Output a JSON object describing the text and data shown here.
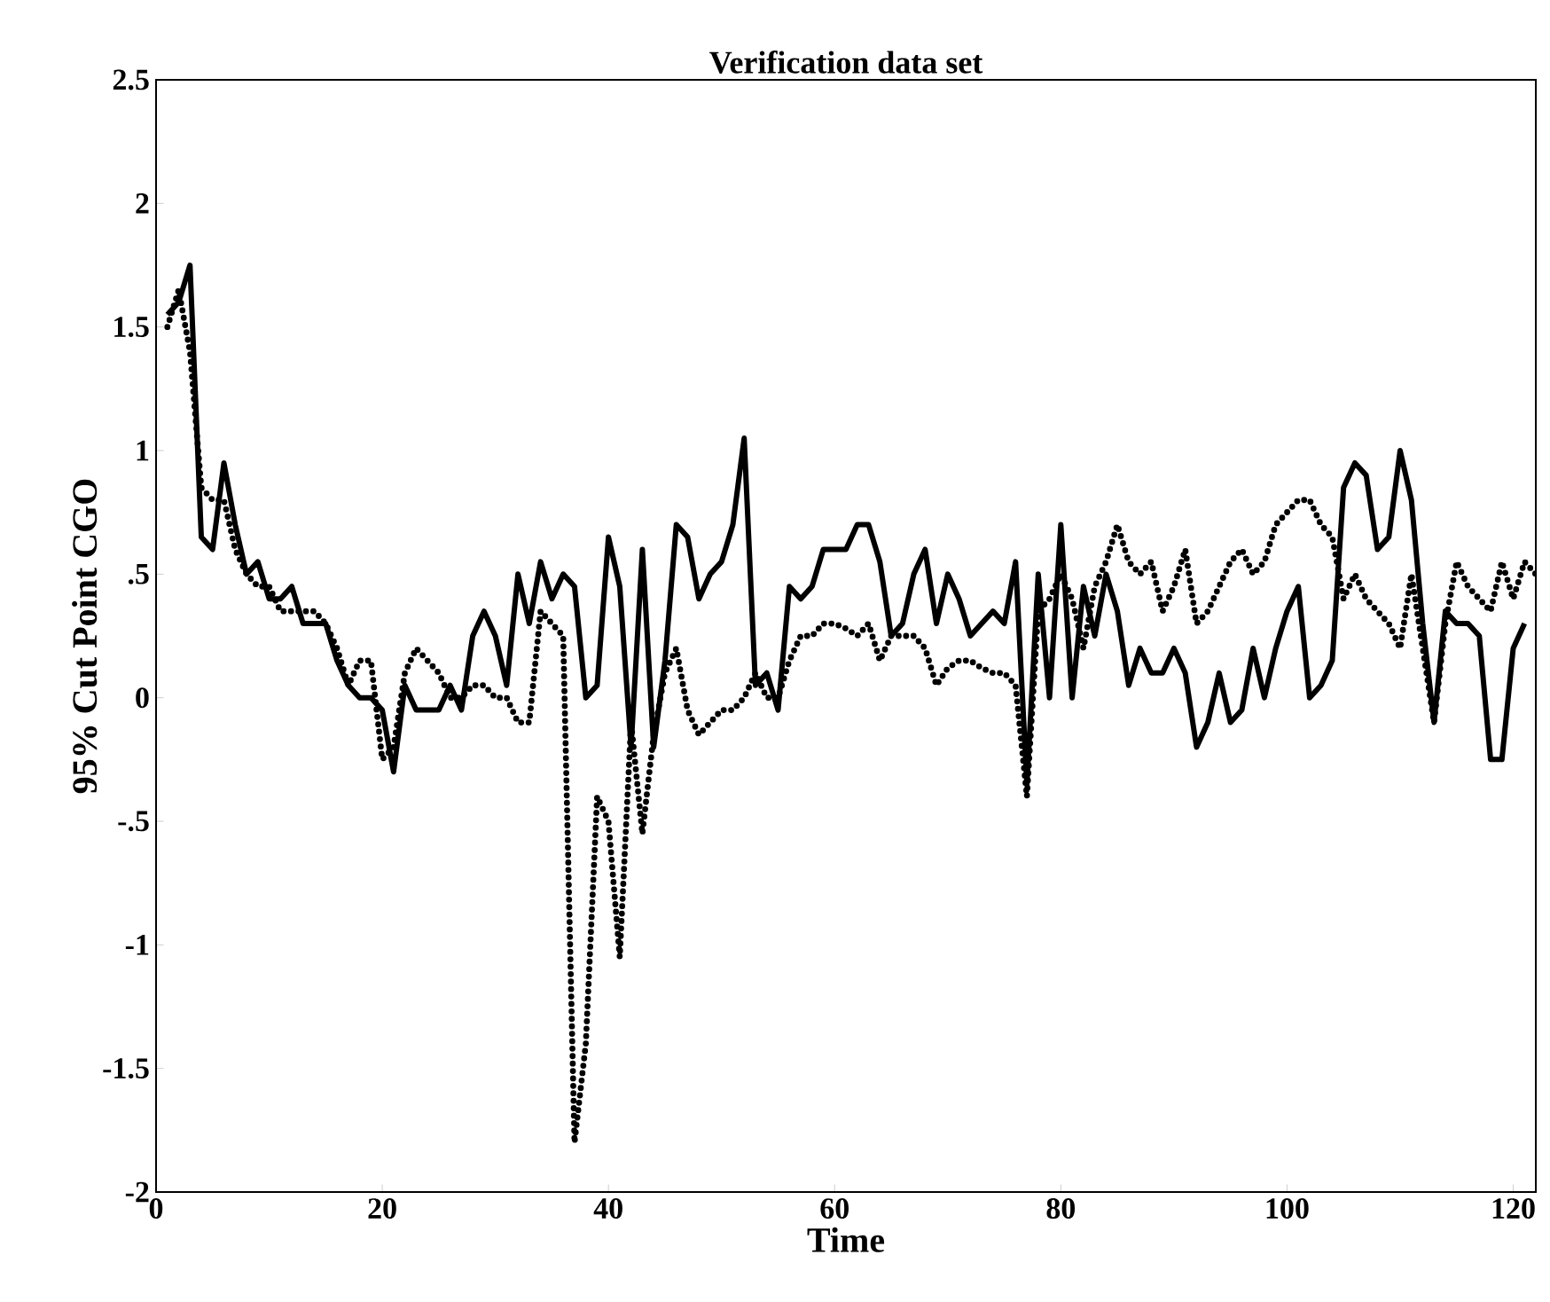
{
  "chart_data": {
    "type": "line",
    "title": "Verification data set",
    "xlabel": "Time",
    "ylabel": "95% Cut Point CGO",
    "xlim": [
      0,
      122
    ],
    "ylim": [
      -2,
      2.5
    ],
    "xticks": [
      0,
      20,
      40,
      60,
      80,
      100,
      120
    ],
    "yticks": [
      {
        "value": 2.5,
        "label": "2.5"
      },
      2,
      {
        "value": 1.5,
        "label": "1.5"
      },
      1,
      {
        "value": 0.5,
        "label": ".5"
      },
      0,
      {
        "value": -0.5,
        "label": "-.5"
      },
      -1,
      {
        "value": -1.5,
        "label": "-1.5"
      },
      -2
    ],
    "grid": false,
    "series": [
      {
        "color": "#000000",
        "line_style": "solid",
        "x": [
          1,
          2,
          3,
          4,
          5,
          6,
          7,
          8,
          9,
          10,
          11,
          12,
          13,
          14,
          15,
          16,
          17,
          18,
          19,
          20,
          21,
          22,
          23,
          24,
          25,
          26,
          27,
          28,
          29,
          30,
          31,
          32,
          33,
          34,
          35,
          36,
          37,
          38,
          39,
          40,
          41,
          42,
          43,
          44,
          45,
          46,
          47,
          48,
          49,
          50,
          51,
          52,
          53,
          54,
          55,
          56,
          57,
          58,
          59,
          60,
          61,
          62,
          63,
          64,
          65,
          66,
          67,
          68,
          69,
          70,
          71,
          72,
          73,
          74,
          75,
          76,
          77,
          78,
          79,
          80,
          81,
          82,
          83,
          84,
          85,
          86,
          87,
          88,
          89,
          90,
          91,
          92,
          93,
          94,
          95,
          96,
          97,
          98,
          99,
          100,
          101,
          102,
          103,
          104,
          105,
          106,
          107,
          108,
          109,
          110,
          111,
          112,
          113,
          114,
          115,
          116,
          117,
          118,
          119,
          120,
          121
        ],
        "values": [
          1.55,
          1.6,
          1.75,
          0.65,
          0.6,
          0.95,
          0.7,
          0.5,
          0.55,
          0.4,
          0.4,
          0.45,
          0.3,
          0.3,
          0.3,
          0.15,
          0.05,
          0.0,
          0.0,
          -0.05,
          -0.3,
          0.05,
          -0.05,
          -0.05,
          -0.05,
          0.05,
          -0.05,
          0.25,
          0.35,
          0.25,
          0.05,
          0.5,
          0.3,
          0.55,
          0.4,
          0.5,
          0.45,
          0.0,
          0.05,
          0.65,
          0.45,
          -0.2,
          0.6,
          -0.2,
          0.15,
          0.7,
          0.65,
          0.4,
          0.5,
          0.55,
          0.7,
          1.05,
          0.05,
          0.1,
          -0.05,
          0.45,
          0.4,
          0.45,
          0.6,
          0.6,
          0.6,
          0.7,
          0.7,
          0.55,
          0.25,
          0.3,
          0.5,
          0.6,
          0.3,
          0.5,
          0.4,
          0.25,
          0.3,
          0.35,
          0.3,
          0.55,
          -0.35,
          0.5,
          0.0,
          0.7,
          0.0,
          0.45,
          0.25,
          0.5,
          0.35,
          0.05,
          0.2,
          0.1,
          0.1,
          0.2,
          0.1,
          -0.2,
          -0.1,
          0.1,
          -0.1,
          -0.05,
          0.2,
          0.0,
          0.2,
          0.35,
          0.45,
          0.0,
          0.05,
          0.15,
          0.85,
          0.95,
          0.9,
          0.6,
          0.65,
          1.0,
          0.8,
          0.3,
          -0.1,
          0.35,
          0.3,
          0.3,
          0.25,
          -0.25,
          -0.25,
          0.2,
          0.3
        ]
      },
      {
        "color": "#000000",
        "line_style": "dotted",
        "x": [
          1,
          2,
          3,
          4,
          5,
          6,
          7,
          8,
          9,
          10,
          11,
          12,
          13,
          14,
          15,
          16,
          17,
          18,
          19,
          20,
          21,
          22,
          23,
          24,
          25,
          26,
          27,
          28,
          29,
          30,
          31,
          32,
          33,
          34,
          35,
          36,
          37,
          38,
          39,
          40,
          41,
          42,
          43,
          44,
          45,
          46,
          47,
          48,
          49,
          50,
          51,
          52,
          53,
          54,
          55,
          56,
          57,
          58,
          59,
          60,
          61,
          62,
          63,
          64,
          65,
          66,
          67,
          68,
          69,
          70,
          71,
          72,
          73,
          74,
          75,
          76,
          77,
          78,
          79,
          80,
          81,
          82,
          83,
          84,
          85,
          86,
          87,
          88,
          89,
          90,
          91,
          92,
          93,
          94,
          95,
          96,
          97,
          98,
          99,
          100,
          101,
          102,
          103,
          104,
          105,
          106,
          107,
          108,
          109,
          110,
          111,
          112,
          113,
          114,
          115,
          116,
          117,
          118,
          119,
          120,
          121,
          122
        ],
        "values": [
          1.5,
          1.65,
          1.4,
          0.85,
          0.8,
          0.8,
          0.6,
          0.5,
          0.45,
          0.45,
          0.35,
          0.35,
          0.35,
          0.35,
          0.3,
          0.2,
          0.05,
          0.15,
          0.15,
          -0.25,
          -0.2,
          0.1,
          0.2,
          0.15,
          0.1,
          0.0,
          0.0,
          0.05,
          0.05,
          0.0,
          0.0,
          -0.1,
          -0.1,
          0.35,
          0.3,
          0.25,
          -1.8,
          -1.4,
          -0.4,
          -0.5,
          -1.05,
          -0.1,
          -0.55,
          -0.15,
          0.1,
          0.2,
          -0.05,
          -0.15,
          -0.1,
          -0.05,
          -0.05,
          0.0,
          0.1,
          0.0,
          0.0,
          0.15,
          0.25,
          0.25,
          0.3,
          0.3,
          0.28,
          0.25,
          0.3,
          0.15,
          0.25,
          0.25,
          0.25,
          0.2,
          0.05,
          0.12,
          0.15,
          0.15,
          0.12,
          0.1,
          0.1,
          0.05,
          -0.4,
          0.35,
          0.4,
          0.5,
          0.4,
          0.2,
          0.45,
          0.55,
          0.7,
          0.55,
          0.5,
          0.55,
          0.35,
          0.45,
          0.6,
          0.3,
          0.35,
          0.45,
          0.55,
          0.6,
          0.5,
          0.55,
          0.7,
          0.75,
          0.8,
          0.8,
          0.7,
          0.65,
          0.4,
          0.5,
          0.4,
          0.35,
          0.3,
          0.2,
          0.5,
          0.2,
          -0.1,
          0.3,
          0.55,
          0.45,
          0.4,
          0.35,
          0.55,
          0.4,
          0.55,
          0.5
        ]
      }
    ]
  }
}
